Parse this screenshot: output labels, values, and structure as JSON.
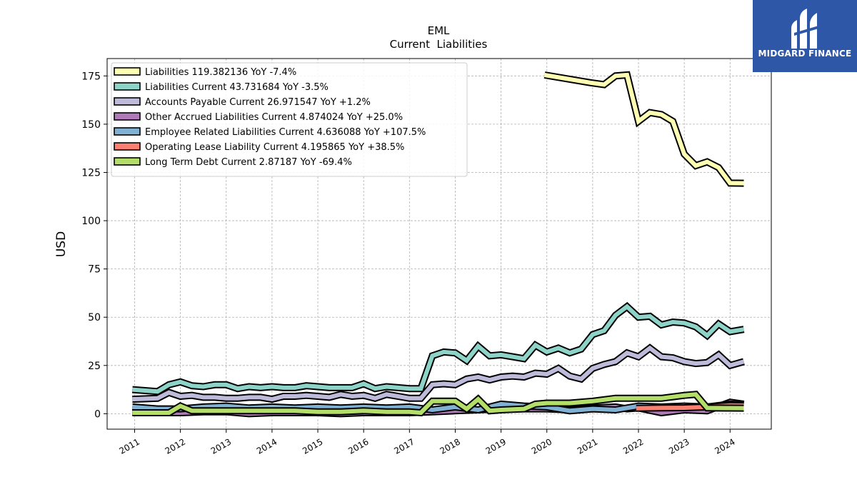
{
  "brand": {
    "name": "MIDGARD FINANCE",
    "logo_icon": "midgard-logo-icon",
    "color": "#2f57a8"
  },
  "chart_data": {
    "type": "line",
    "title": "EML",
    "subtitle": "Current  Liabilities",
    "ylabel": "USD",
    "xlabel": "",
    "ylim": [
      -8,
      184
    ],
    "xlim": [
      2010.4,
      2024.9
    ],
    "yticks": [
      "0",
      "25",
      "50",
      "75",
      "100",
      "125",
      "150",
      "175"
    ],
    "xticks": [
      "2011",
      "2012",
      "2013",
      "2014",
      "2015",
      "2016",
      "2017",
      "2018",
      "2019",
      "2020",
      "2021",
      "2022",
      "2023",
      "2024"
    ],
    "grid": true,
    "legend_position": "top-left",
    "series": [
      {
        "name": "Liabilities",
        "legend": "Liabilities  119.382136 YoY -7.4%",
        "color": "#ffffb3",
        "x": [
          2019.95,
          2020.95,
          2021.25,
          2021.5,
          2021.75,
          2022.0,
          2022.25,
          2022.5,
          2022.75,
          2023.0,
          2023.25,
          2023.5,
          2023.75,
          2024.0,
          2024.3
        ],
        "y": [
          175.5,
          171.5,
          170.5,
          175,
          175.5,
          151.5,
          156,
          155,
          151.5,
          134.5,
          128.5,
          130.5,
          127.5,
          119.5,
          119.4
        ]
      },
      {
        "name": "Liabilities Current",
        "legend": "Liabilities Current  43.731684 YoY -3.5%",
        "color": "#8dd3c7",
        "x": [
          2010.95,
          2011.5,
          2011.75,
          2012.0,
          2012.25,
          2012.5,
          2012.75,
          2013.0,
          2013.25,
          2013.5,
          2013.75,
          2014.0,
          2014.25,
          2014.5,
          2014.75,
          2015.0,
          2015.25,
          2015.5,
          2015.75,
          2016.0,
          2016.25,
          2016.5,
          2016.75,
          2017.0,
          2017.25,
          2017.5,
          2017.75,
          2018.0,
          2018.25,
          2018.5,
          2018.75,
          2019.0,
          2019.25,
          2019.5,
          2019.75,
          2020.0,
          2020.25,
          2020.5,
          2020.75,
          2021.0,
          2021.25,
          2021.5,
          2021.75,
          2022.0,
          2022.25,
          2022.5,
          2022.75,
          2023.0,
          2023.25,
          2023.5,
          2023.75,
          2024.0,
          2024.3
        ],
        "y": [
          12.5,
          11.5,
          15,
          16.5,
          14.5,
          14,
          15,
          15,
          13,
          14,
          13.5,
          14,
          13.5,
          13.5,
          14.5,
          14,
          13.5,
          13.5,
          13.5,
          15.5,
          13,
          14,
          13.5,
          13,
          13,
          30,
          32,
          31.5,
          27.5,
          35,
          30,
          30.5,
          29.5,
          28.5,
          35.5,
          32,
          34,
          31.5,
          33.5,
          41,
          43,
          51,
          55.5,
          50,
          50.5,
          46,
          47.5,
          47,
          45,
          40.5,
          46.5,
          42.5,
          43.7
        ]
      },
      {
        "name": "Accounts Payable Current",
        "legend": "Accounts Payable Current  26.971547 YoY +1.2%",
        "color": "#bebada",
        "x": [
          2010.95,
          2011.5,
          2011.75,
          2012.0,
          2012.25,
          2012.5,
          2012.75,
          2013.0,
          2013.25,
          2013.5,
          2013.75,
          2014.0,
          2014.25,
          2014.5,
          2014.75,
          2015.0,
          2015.25,
          2015.5,
          2015.75,
          2016.0,
          2016.25,
          2016.5,
          2016.75,
          2017.0,
          2017.25,
          2017.5,
          2017.75,
          2018.0,
          2018.25,
          2018.5,
          2018.75,
          2019.0,
          2019.25,
          2019.5,
          2019.75,
          2020.0,
          2020.25,
          2020.5,
          2020.75,
          2021.0,
          2021.25,
          2021.5,
          2021.75,
          2022.0,
          2022.25,
          2022.5,
          2022.75,
          2023.0,
          2023.25,
          2023.5,
          2023.75,
          2024.0,
          2024.3
        ],
        "y": [
          7.5,
          8,
          11,
          9,
          9.5,
          8.5,
          8.5,
          8,
          8,
          8.5,
          8.5,
          7.5,
          9,
          9,
          9.5,
          9,
          8.5,
          10,
          9,
          9.5,
          8,
          10,
          9,
          8,
          8,
          15,
          15.5,
          15,
          18,
          19,
          17.5,
          19,
          19.5,
          19,
          21,
          20.5,
          23.5,
          19.5,
          18,
          23.5,
          25.5,
          27,
          31.5,
          29.5,
          34,
          29.5,
          29,
          27,
          26,
          26.5,
          30.5,
          25,
          27
        ]
      },
      {
        "name": "Other Accrued Liabilities Current",
        "legend": "Other Accrued Liabilities Current  4.874024 YoY +25.0%",
        "color": "#b07ab8",
        "x": [
          2010.95,
          2011.5,
          2012.0,
          2012.5,
          2013.0,
          2013.5,
          2014.0,
          2014.5,
          2015.0,
          2015.5,
          2016.0,
          2016.5,
          2017.0,
          2017.5,
          2018.0,
          2018.5,
          2019.0,
          2019.5,
          2020.0,
          2020.5,
          2021.0,
          2021.5,
          2021.75,
          2022.0,
          2022.5,
          2023.0,
          2023.5,
          2024.0,
          2024.3
        ],
        "y": [
          1,
          0.5,
          0.5,
          1,
          1,
          0,
          0.5,
          0.5,
          0.5,
          0,
          0.5,
          0.5,
          0.5,
          1,
          1.5,
          2,
          2.5,
          2.5,
          2.5,
          2,
          3,
          3.5,
          2.5,
          3,
          0.5,
          2,
          1.5,
          6,
          5
        ]
      },
      {
        "name": "Employee Related Liabilities Current",
        "legend": "Employee Related Liabilities Current  4.636088 YoY +107.5%",
        "color": "#80b1d3",
        "x": [
          2010.95,
          2011.5,
          2011.75,
          2012.0,
          2012.5,
          2013.0,
          2013.5,
          2014.0,
          2014.5,
          2015.0,
          2015.5,
          2016.0,
          2016.5,
          2017.0,
          2017.5,
          2018.0,
          2018.5,
          2019.0,
          2019.5,
          2020.0,
          2020.5,
          2021.0,
          2021.5,
          2022.0,
          2022.5,
          2023.0,
          2023.5,
          2024.0,
          2024.3
        ],
        "y": [
          3.5,
          2.5,
          2.5,
          2.5,
          3.5,
          4,
          3,
          3.5,
          3,
          3.5,
          3,
          3.5,
          3,
          3.5,
          2,
          3.5,
          2,
          5,
          4,
          3.5,
          1.5,
          2.5,
          2,
          4,
          3.5,
          4,
          3.5,
          5,
          4.6
        ]
      },
      {
        "name": "Operating Lease Liability Current",
        "legend": "Operating Lease Liability Current  4.195865 YoY +38.5%",
        "color": "#fb8072",
        "x": [
          2021.95,
          2022.5,
          2023.0,
          2023.5,
          2024.0,
          2024.3
        ],
        "y": [
          2.8,
          3.0,
          3.1,
          3.5,
          4.3,
          4.2
        ]
      },
      {
        "name": "Long Term Debt Current",
        "legend": "Long Term Debt Current  2.87187 YoY -69.4%",
        "color": "#b3de69",
        "x": [
          2010.95,
          2011.75,
          2012.0,
          2012.25,
          2012.5,
          2013.0,
          2013.5,
          2014.0,
          2014.5,
          2015.0,
          2015.5,
          2016.0,
          2016.5,
          2017.0,
          2017.25,
          2017.5,
          2017.75,
          2018.0,
          2018.25,
          2018.5,
          2018.75,
          2019.0,
          2019.5,
          2019.75,
          2020.0,
          2020.5,
          2021.0,
          2021.5,
          2022.0,
          2022.5,
          2023.0,
          2023.25,
          2023.5,
          2024.0,
          2024.3
        ],
        "y": [
          0.5,
          0.5,
          4,
          1.5,
          1.5,
          1.5,
          1.5,
          1.5,
          1.5,
          1,
          1,
          1.5,
          1,
          1,
          0.5,
          6.5,
          6.5,
          6.5,
          2.5,
          7.5,
          1.5,
          2,
          2.5,
          5,
          5.5,
          5.5,
          6.5,
          8,
          8,
          8,
          9.5,
          10,
          3,
          2.9,
          2.87
        ]
      }
    ]
  }
}
